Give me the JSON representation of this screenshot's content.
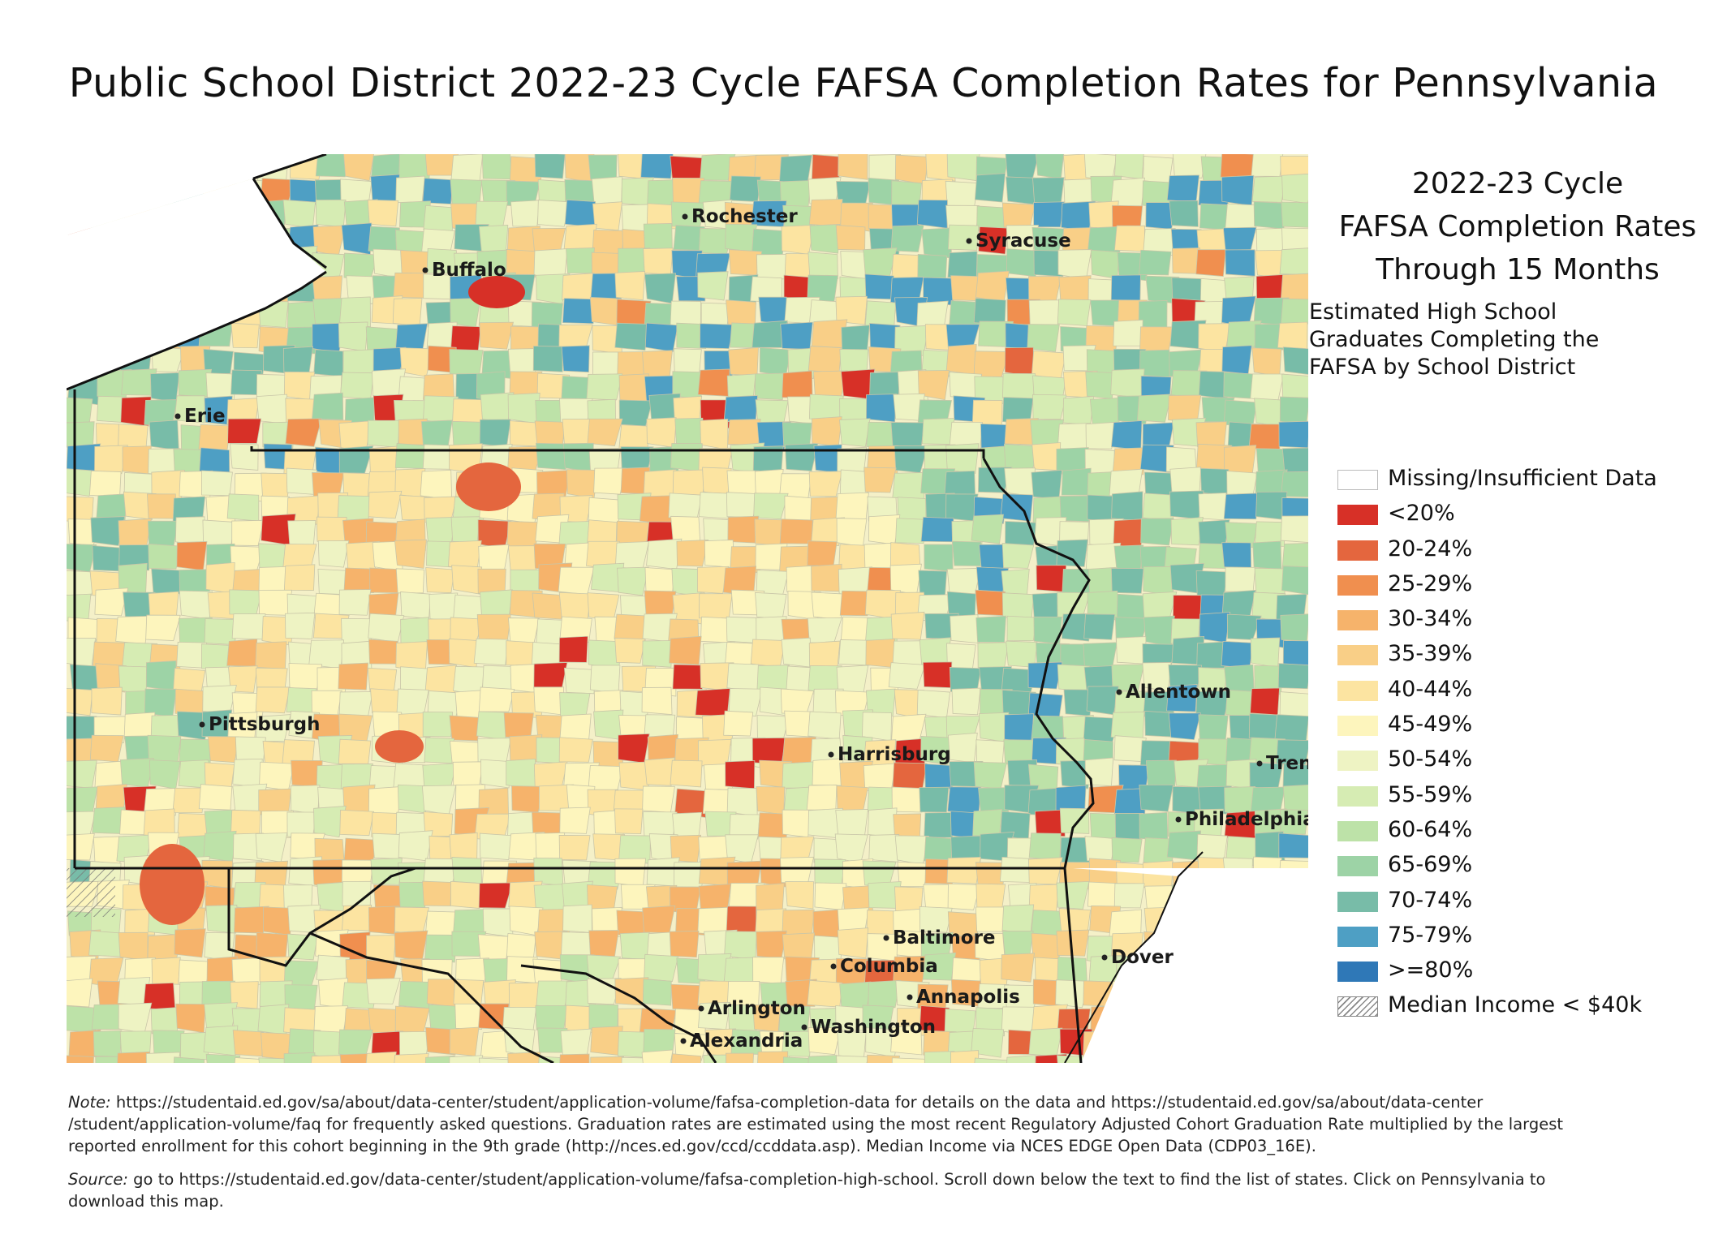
{
  "title": "Public School District 2022-23 Cycle FAFSA Completion Rates for Pennsylvania",
  "legend": {
    "title_lines": [
      "2022-23 Cycle",
      "FAFSA Completion Rates",
      "Through 15 Months"
    ],
    "subtitle_lines": [
      "Estimated High School",
      "Graduates Completing the",
      "FAFSA by School District"
    ],
    "items": [
      {
        "label": "Missing/Insufficient Data",
        "color": "#ffffff"
      },
      {
        "label": "<20%",
        "color": "#d73027"
      },
      {
        "label": "20-24%",
        "color": "#e4663e"
      },
      {
        "label": "25-29%",
        "color": "#f08f4f"
      },
      {
        "label": "30-34%",
        "color": "#f6b36b"
      },
      {
        "label": "35-39%",
        "color": "#f9cf87"
      },
      {
        "label": "40-44%",
        "color": "#fce4a1"
      },
      {
        "label": "45-49%",
        "color": "#fdf5bd"
      },
      {
        "label": "50-54%",
        "color": "#eef3c3"
      },
      {
        "label": "55-59%",
        "color": "#d6ecb3"
      },
      {
        "label": "60-64%",
        "color": "#bde2a8"
      },
      {
        "label": "65-69%",
        "color": "#9dd3a6"
      },
      {
        "label": "70-74%",
        "color": "#78bca8"
      },
      {
        "label": "75-79%",
        "color": "#4e9fc4"
      },
      {
        "label": ">=80%",
        "color": "#2f78b7"
      },
      {
        "label": "Median Income < $40k",
        "pattern": "hatch"
      }
    ]
  },
  "cities": [
    "Rochester",
    "Syracuse",
    "Buffalo",
    "Erie",
    "Pittsburgh",
    "Allentown",
    "Harrisburg",
    "Tren",
    "Philadelphia",
    "Baltimore",
    "Columbia",
    "Annapolis",
    "Dover",
    "Arlington",
    "Alexandria",
    "Washington"
  ],
  "footnote": {
    "note_label": "Note:",
    "note_text": " https://studentaid.ed.gov/sa/about/data-center/student/application-volume/fafsa-completion-data for details on the data and https://studentaid.ed.gov/sa/about/data-center /student/application-volume/faq for frequently asked questions. Graduation rates are estimated using the most recent Regulatory Adjusted Cohort Graduation Rate multiplied by the largest reported enrollment for this cohort beginning in the 9th grade (http://nces.ed.gov/ccd/ccddata.asp). Median Income via NCES EDGE Open Data (CDP03_16E).",
    "source_label": "Source:",
    "source_text": " go to https://studentaid.ed.gov/data-center/student/application-volume/fafsa-completion-high-school. Scroll down below the text to find the list of states. Click on Pennsylvania to download this map."
  }
}
